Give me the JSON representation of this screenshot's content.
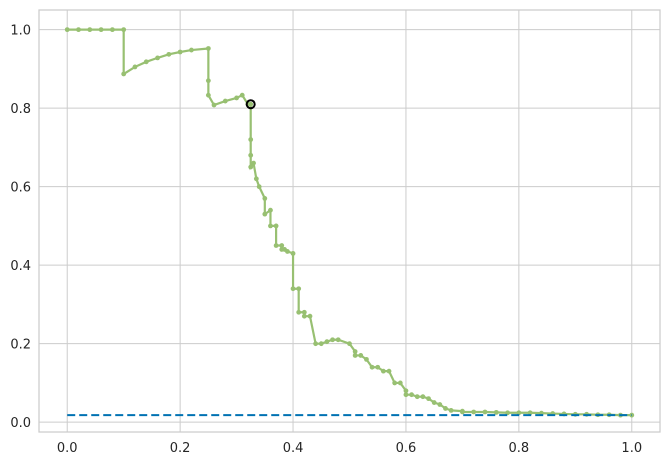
{
  "chart_data": {
    "type": "line",
    "title": "",
    "xlabel": "",
    "ylabel": "",
    "xlim": [
      -0.05,
      1.05
    ],
    "ylim": [
      -0.025,
      1.05
    ],
    "grid": true,
    "xticks": [
      "0.0",
      "0.2",
      "0.4",
      "0.6",
      "0.8",
      "1.0"
    ],
    "yticks": [
      "0.0",
      "0.2",
      "0.4",
      "0.6",
      "0.8",
      "1.0"
    ],
    "xtick_values": [
      0.0,
      0.2,
      0.4,
      0.6,
      0.8,
      1.0
    ],
    "ytick_values": [
      0.0,
      0.2,
      0.4,
      0.6,
      0.8,
      1.0
    ],
    "series": [
      {
        "color": "#98c072",
        "style": "step-with-markers",
        "x": [
          0.0,
          0.02,
          0.04,
          0.06,
          0.08,
          0.1,
          0.1,
          0.12,
          0.14,
          0.16,
          0.18,
          0.2,
          0.22,
          0.25,
          0.25,
          0.25,
          0.26,
          0.28,
          0.3,
          0.31,
          0.32,
          0.325,
          0.325,
          0.325,
          0.325,
          0.33,
          0.335,
          0.34,
          0.35,
          0.35,
          0.36,
          0.36,
          0.37,
          0.37,
          0.38,
          0.38,
          0.385,
          0.39,
          0.4,
          0.4,
          0.41,
          0.41,
          0.42,
          0.42,
          0.43,
          0.44,
          0.45,
          0.46,
          0.47,
          0.48,
          0.5,
          0.51,
          0.51,
          0.52,
          0.53,
          0.54,
          0.55,
          0.56,
          0.57,
          0.58,
          0.59,
          0.6,
          0.6,
          0.61,
          0.62,
          0.63,
          0.64,
          0.65,
          0.66,
          0.67,
          0.68,
          0.7,
          0.7,
          0.72,
          0.74,
          0.76,
          0.78,
          0.8,
          0.82,
          0.84,
          0.86,
          0.88,
          0.9,
          0.92,
          0.94,
          0.96,
          0.98,
          1.0
        ],
        "y": [
          1.0,
          1.0,
          1.0,
          1.0,
          1.0,
          1.0,
          0.887,
          0.905,
          0.918,
          0.928,
          0.937,
          0.943,
          0.948,
          0.952,
          0.87,
          0.833,
          0.808,
          0.818,
          0.826,
          0.833,
          0.81,
          0.81,
          0.72,
          0.68,
          0.65,
          0.66,
          0.62,
          0.6,
          0.57,
          0.53,
          0.54,
          0.5,
          0.5,
          0.45,
          0.45,
          0.44,
          0.44,
          0.435,
          0.43,
          0.34,
          0.34,
          0.28,
          0.28,
          0.27,
          0.27,
          0.2,
          0.2,
          0.205,
          0.21,
          0.21,
          0.2,
          0.18,
          0.17,
          0.17,
          0.16,
          0.14,
          0.14,
          0.13,
          0.13,
          0.1,
          0.1,
          0.08,
          0.07,
          0.07,
          0.065,
          0.065,
          0.06,
          0.05,
          0.045,
          0.035,
          0.03,
          0.028,
          0.026,
          0.026,
          0.026,
          0.025,
          0.024,
          0.024,
          0.024,
          0.023,
          0.022,
          0.021,
          0.02,
          0.02,
          0.019,
          0.019,
          0.018,
          0.018
        ]
      },
      {
        "color": "#0072b2",
        "style": "dashed",
        "x": [
          0.0,
          1.0
        ],
        "y": [
          0.018,
          0.018
        ]
      }
    ],
    "marker": {
      "x": 0.325,
      "y": 0.81,
      "color": "#000000",
      "shape": "open-circle"
    },
    "colors": {
      "background": "#ffffff",
      "grid": "#cccccc",
      "frame": "#cccccc"
    }
  }
}
